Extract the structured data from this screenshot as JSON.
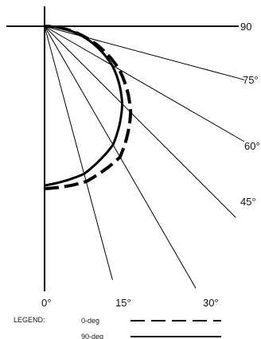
{
  "chart_data": {
    "type": "polar",
    "angle_labels": [
      "0°",
      "15°",
      "30°",
      "45°",
      "60°",
      "75°",
      "90"
    ],
    "angles_deg": [
      0,
      15,
      30,
      45,
      60,
      75,
      90
    ],
    "series": [
      {
        "name": "0-deg",
        "line_style": "dashed",
        "points": [
          {
            "angle": 0,
            "r": 1.0
          },
          {
            "angle": 15,
            "r": 0.99
          },
          {
            "angle": 30,
            "r": 0.93
          },
          {
            "angle": 45,
            "r": 0.75
          },
          {
            "angle": 60,
            "r": 0.53
          },
          {
            "angle": 75,
            "r": 0.26
          },
          {
            "angle": 90,
            "r": 0.0
          }
        ]
      },
      {
        "name": "90-deg",
        "line_style": "solid",
        "points": [
          {
            "angle": 0,
            "r": 1.0
          },
          {
            "angle": 15,
            "r": 0.96
          },
          {
            "angle": 30,
            "r": 0.86
          },
          {
            "angle": 45,
            "r": 0.69
          },
          {
            "angle": 60,
            "r": 0.49
          },
          {
            "angle": 75,
            "r": 0.25
          },
          {
            "angle": 90,
            "r": 0.0
          }
        ]
      }
    ],
    "legend": {
      "title": "LEGEND:",
      "placement": "bottom",
      "entries": [
        {
          "label": "0-deg",
          "style": "dashed"
        },
        {
          "label": "90-deg",
          "style": "solid"
        }
      ]
    },
    "color": "#000000"
  }
}
